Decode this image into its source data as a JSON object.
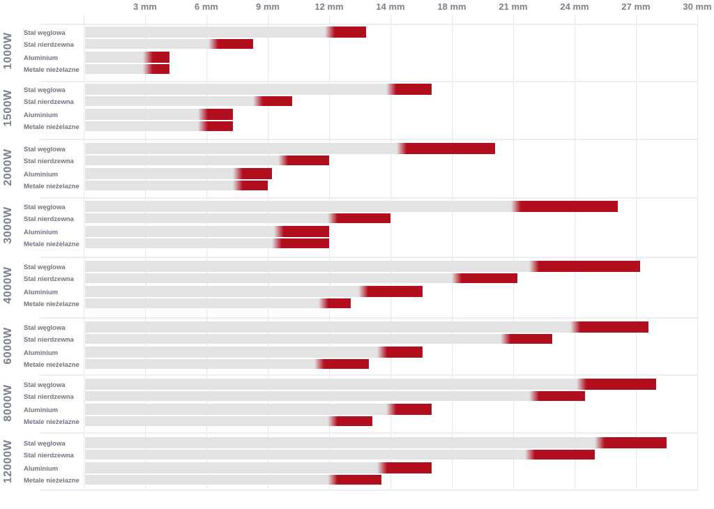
{
  "chart_data": {
    "type": "bar",
    "orientation": "horizontal",
    "x_ticks": [
      "3 mm",
      "6 mm",
      "9 mm",
      "12 mm",
      "14 mm",
      "18 mm",
      "21 mm",
      "24 mm",
      "27 mm",
      "30 mm"
    ],
    "x_tick_values": [
      3,
      6,
      9,
      12,
      14,
      18,
      21,
      24,
      27,
      30
    ],
    "xlim": [
      0,
      30
    ],
    "grid": true,
    "colors": {
      "base": "#e3e3e3",
      "range": "#b20e1e"
    },
    "materials": [
      "Stal węglowa",
      "Stal nierdzewna",
      "Aluminium",
      "Metale nieżelazne"
    ],
    "groups": [
      {
        "label": "1000W",
        "bars": [
          {
            "start": 12.0,
            "end": 13.2
          },
          {
            "start": 6.3,
            "end": 8.3
          },
          {
            "start": 3.1,
            "end": 4.2
          },
          {
            "start": 3.1,
            "end": 4.2
          }
        ]
      },
      {
        "label": "1500W",
        "bars": [
          {
            "start": 14.0,
            "end": 16.7
          },
          {
            "start": 8.5,
            "end": 10.2
          },
          {
            "start": 5.8,
            "end": 7.3
          },
          {
            "start": 5.8,
            "end": 7.3
          }
        ]
      },
      {
        "label": "2000W",
        "bars": [
          {
            "start": 14.7,
            "end": 20.1
          },
          {
            "start": 9.7,
            "end": 12.0
          },
          {
            "start": 7.5,
            "end": 9.2
          },
          {
            "start": 7.5,
            "end": 9.0
          }
        ]
      },
      {
        "label": "3000W",
        "bars": [
          {
            "start": 21.1,
            "end": 26.1
          },
          {
            "start": 12.1,
            "end": 14.0
          },
          {
            "start": 9.5,
            "end": 12.0
          },
          {
            "start": 9.4,
            "end": 12.0
          }
        ]
      },
      {
        "label": "4000W",
        "bars": [
          {
            "start": 22.0,
            "end": 27.2
          },
          {
            "start": 18.2,
            "end": 21.2
          },
          {
            "start": 13.1,
            "end": 16.1
          },
          {
            "start": 11.7,
            "end": 12.7
          }
        ]
      },
      {
        "label": "6000W",
        "bars": [
          {
            "start": 24.0,
            "end": 27.6
          },
          {
            "start": 20.6,
            "end": 22.9
          },
          {
            "start": 13.7,
            "end": 16.1
          },
          {
            "start": 11.5,
            "end": 13.3
          }
        ]
      },
      {
        "label": "8000W",
        "bars": [
          {
            "start": 24.3,
            "end": 28.0
          },
          {
            "start": 22.0,
            "end": 24.5
          },
          {
            "start": 14.0,
            "end": 16.7
          },
          {
            "start": 12.1,
            "end": 13.4
          }
        ]
      },
      {
        "label": "12000W",
        "bars": [
          {
            "start": 25.2,
            "end": 28.5
          },
          {
            "start": 21.8,
            "end": 25.0
          },
          {
            "start": 13.7,
            "end": 16.7
          },
          {
            "start": 12.1,
            "end": 13.7
          }
        ]
      }
    ]
  }
}
